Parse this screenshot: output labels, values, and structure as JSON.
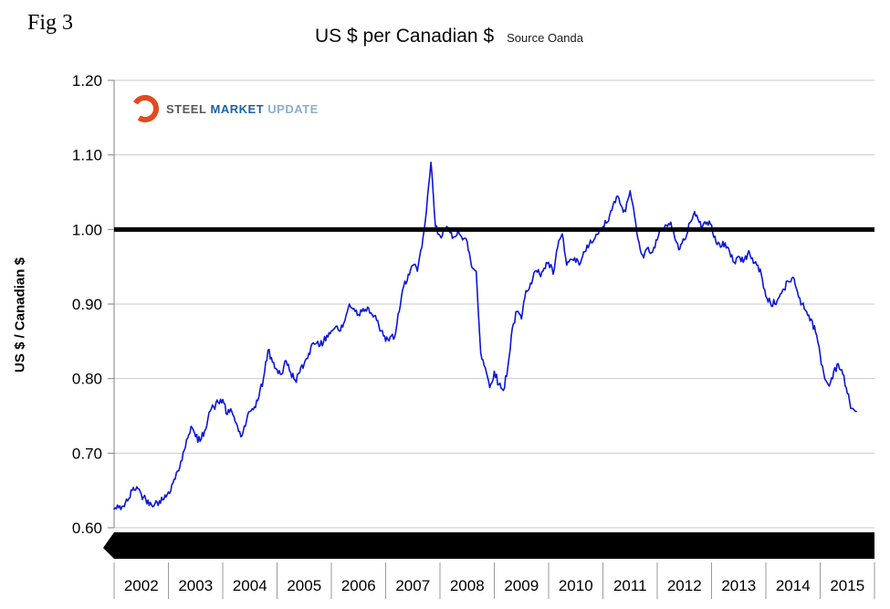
{
  "figure_label": "Fig 3",
  "header": {
    "title": "US $ per Canadian $",
    "source": "Source Oanda"
  },
  "logo": {
    "steel": "STEEL",
    "market": "MARKET",
    "update": "UPDATE",
    "arc_color": "#e2491f"
  },
  "chart_data": {
    "type": "line",
    "title": "US $ per Canadian $",
    "xlabel": "",
    "ylabel": "US $ / Canadian $",
    "ylim": [
      0.6,
      1.2
    ],
    "yticks": [
      1.2,
      1.1,
      1.0,
      0.9,
      0.8,
      0.7,
      0.6
    ],
    "years": [
      2002,
      2003,
      2004,
      2005,
      2006,
      2007,
      2008,
      2009,
      2010,
      2011,
      2012,
      2013,
      2014,
      2015
    ],
    "grid": true,
    "legend": "none",
    "line_color": "#0a16d6",
    "reference_line": {
      "value": 1.0,
      "color": "#000000"
    },
    "series": [
      {
        "name": "US $ per Canadian $",
        "start": "2002-01",
        "frequency": "monthly",
        "values": [
          0.625,
          0.627,
          0.629,
          0.636,
          0.65,
          0.655,
          0.645,
          0.638,
          0.634,
          0.632,
          0.636,
          0.638,
          0.648,
          0.66,
          0.676,
          0.69,
          0.718,
          0.736,
          0.722,
          0.716,
          0.73,
          0.755,
          0.762,
          0.768,
          0.772,
          0.752,
          0.756,
          0.74,
          0.722,
          0.736,
          0.756,
          0.762,
          0.776,
          0.8,
          0.838,
          0.822,
          0.812,
          0.806,
          0.824,
          0.808,
          0.798,
          0.808,
          0.82,
          0.834,
          0.848,
          0.85,
          0.844,
          0.858,
          0.864,
          0.87,
          0.864,
          0.878,
          0.9,
          0.894,
          0.886,
          0.894,
          0.896,
          0.886,
          0.878,
          0.864,
          0.85,
          0.856,
          0.856,
          0.89,
          0.924,
          0.94,
          0.952,
          0.944,
          0.976,
          1.024,
          1.09,
          1.004,
          0.992,
          1.0,
          0.998,
          0.99,
          1.0,
          0.986,
          0.984,
          0.95,
          0.944,
          0.835,
          0.815,
          0.788,
          0.81,
          0.792,
          0.784,
          0.816,
          0.868,
          0.89,
          0.88,
          0.918,
          0.928,
          0.944,
          0.94,
          0.948,
          0.956,
          0.94,
          0.976,
          0.994,
          0.952,
          0.96,
          0.956,
          0.954,
          0.97,
          0.98,
          0.986,
          0.994,
          1.004,
          1.01,
          1.026,
          1.044,
          1.032,
          1.024,
          1.052,
          1.018,
          0.982,
          0.962,
          0.976,
          0.97,
          0.986,
          1.0,
          1.006,
          1.01,
          0.986,
          0.974,
          0.986,
          1.008,
          1.02,
          1.014,
          1.004,
          1.01,
          1.006,
          0.982,
          0.976,
          0.982,
          0.97,
          0.956,
          0.964,
          0.956,
          0.968,
          0.962,
          0.952,
          0.94,
          0.91,
          0.902,
          0.9,
          0.91,
          0.92,
          0.93,
          0.936,
          0.916,
          0.9,
          0.89,
          0.88,
          0.862,
          0.832,
          0.8,
          0.79,
          0.81,
          0.82,
          0.806,
          0.78,
          0.76,
          0.756
        ]
      }
    ]
  }
}
